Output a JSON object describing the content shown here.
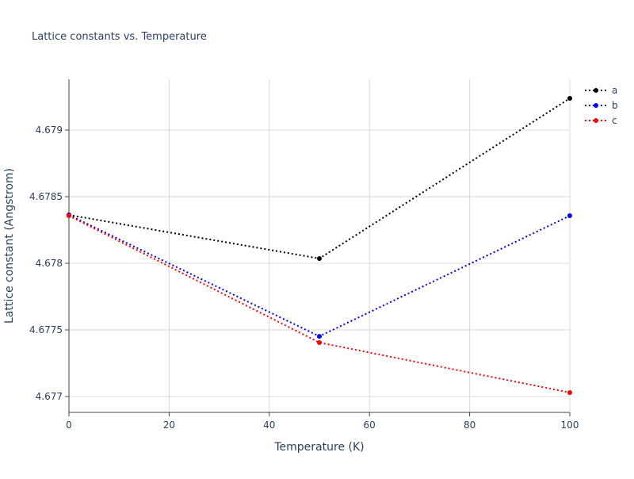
{
  "chart_data": {
    "type": "line",
    "title": "Lattice constants vs. Temperature",
    "x_label": "Temperature (K)",
    "y_label": "Lattice constant (Angstrom)",
    "x": [
      0,
      50,
      100
    ],
    "series": [
      {
        "name": "a",
        "color": "#000000",
        "values": [
          4.678363,
          4.678036,
          4.679238
        ]
      },
      {
        "name": "b",
        "color": "#0000ff",
        "values": [
          4.678363,
          4.677452,
          4.678357
        ]
      },
      {
        "name": "c",
        "color": "#ff0000",
        "values": [
          4.678357,
          4.677405,
          4.67703
        ]
      }
    ],
    "xlim": [
      0,
      100
    ],
    "xticks": [
      0,
      20,
      40,
      60,
      80,
      100
    ],
    "ylim": [
      4.676881,
      4.679381
    ],
    "yticks": [
      4.677,
      4.6775,
      4.678,
      4.6785,
      4.679
    ],
    "grid": true,
    "line_style": "dotted",
    "legend": "top-right"
  }
}
